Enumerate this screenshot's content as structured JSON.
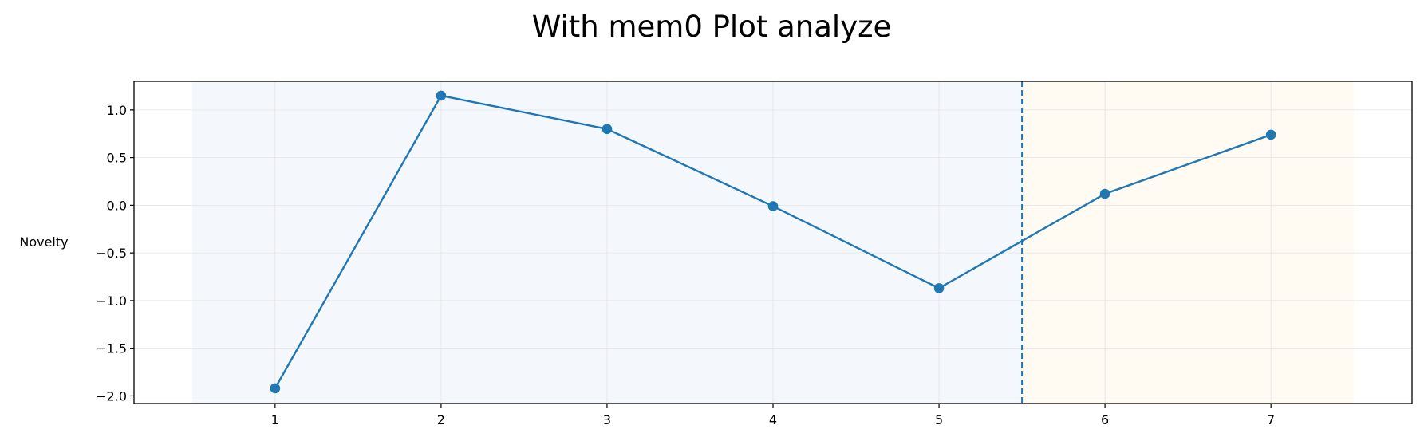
{
  "chart_data": {
    "type": "line",
    "title": "With mem0 Plot analyze",
    "xlabel": "",
    "ylabel": "Novelty",
    "x": [
      1,
      2,
      3,
      4,
      5,
      6,
      7
    ],
    "series": [
      {
        "values": [
          -1.92,
          1.15,
          0.8,
          -0.01,
          -0.87,
          0.12,
          0.74
        ]
      }
    ],
    "xlim": [
      0.15,
      7.85
    ],
    "ylim": [
      -2.08,
      1.3
    ],
    "xticks": [
      1,
      2,
      3,
      4,
      5,
      6,
      7
    ],
    "xtick_labels": [
      "1",
      "2",
      "3",
      "4",
      "5",
      "6",
      "7"
    ],
    "yticks": [
      1.0,
      0.5,
      0.0,
      -0.5,
      -1.0,
      -1.5,
      -2.0
    ],
    "ytick_labels": [
      "1.0",
      "0.5",
      "0.0",
      "−0.5",
      "−1.0",
      "−1.5",
      "−2.0"
    ],
    "grid": true,
    "regions": [
      {
        "x_start": 0.5,
        "x_end": 5.5,
        "color": "#f4f8fd"
      },
      {
        "x_start": 5.5,
        "x_end": 7.5,
        "color": "#fffaf2"
      }
    ],
    "vline": {
      "x": 5.5,
      "style": "dashed",
      "color": "#1f77b4"
    },
    "colors": {
      "line": "#1f77b4",
      "marker": "#1f77b4",
      "grid": "#e3e3e3",
      "frame": "#000000"
    }
  }
}
